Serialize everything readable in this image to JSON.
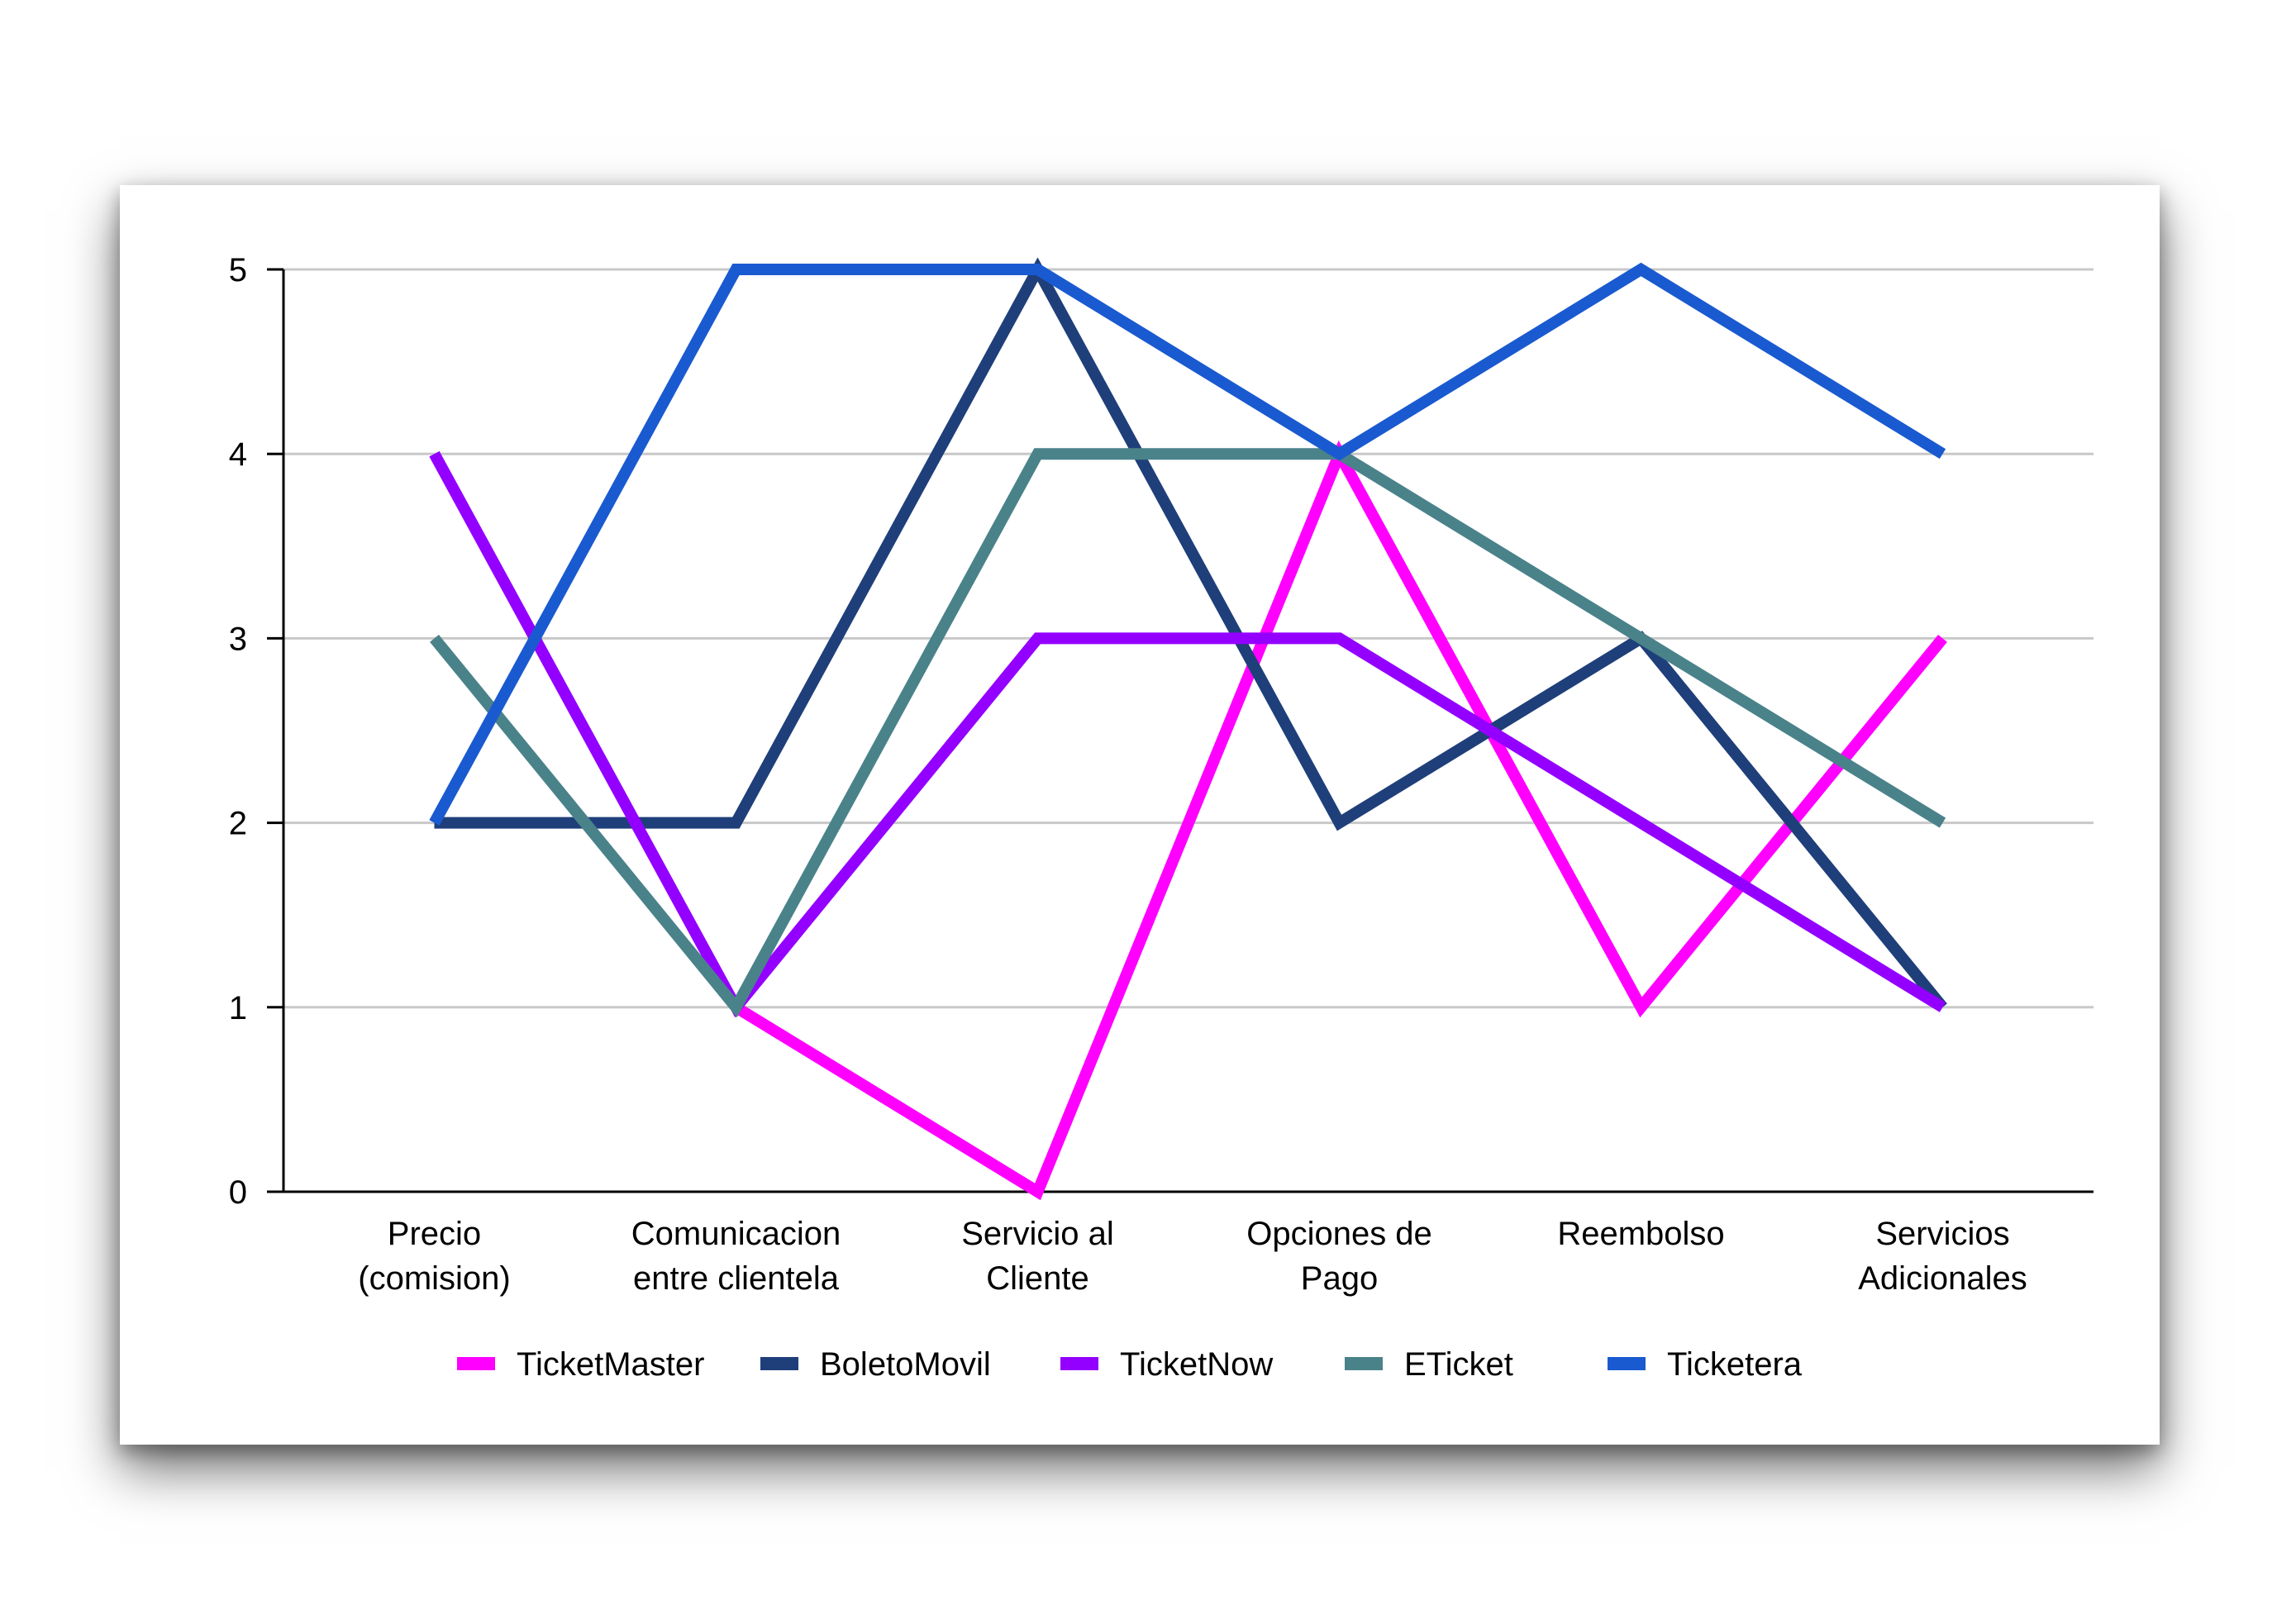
{
  "chart_data": {
    "type": "line",
    "title": "",
    "xlabel": "",
    "ylabel": "",
    "ylim": [
      0,
      5
    ],
    "yticks": [
      0,
      1,
      2,
      3,
      4,
      5
    ],
    "grid": true,
    "legend_position": "bottom",
    "categories": [
      [
        "Precio",
        "(comision)"
      ],
      [
        "Comunicacion",
        "entre clientela"
      ],
      [
        "Servicio al",
        "Cliente"
      ],
      [
        "Opciones de",
        "Pago"
      ],
      [
        "Reembolso"
      ],
      [
        "Servicios",
        "Adicionales"
      ]
    ],
    "series": [
      {
        "name": "TicketMaster",
        "color": "#ff00ff",
        "values": [
          null,
          1,
          0,
          4,
          1,
          3
        ]
      },
      {
        "name": "BoletoMovil",
        "color": "#1f3f7a",
        "values": [
          2,
          2,
          5,
          2,
          3,
          1
        ]
      },
      {
        "name": "TicketNow",
        "color": "#9400ff",
        "values": [
          4,
          1,
          3,
          3,
          2,
          1
        ]
      },
      {
        "name": "ETicket",
        "color": "#4a828a",
        "values": [
          3,
          1,
          4,
          4,
          3,
          2
        ]
      },
      {
        "name": "Ticketera",
        "color": "#1a5ad0",
        "values": [
          2,
          5,
          5,
          4,
          5,
          4
        ]
      }
    ]
  }
}
